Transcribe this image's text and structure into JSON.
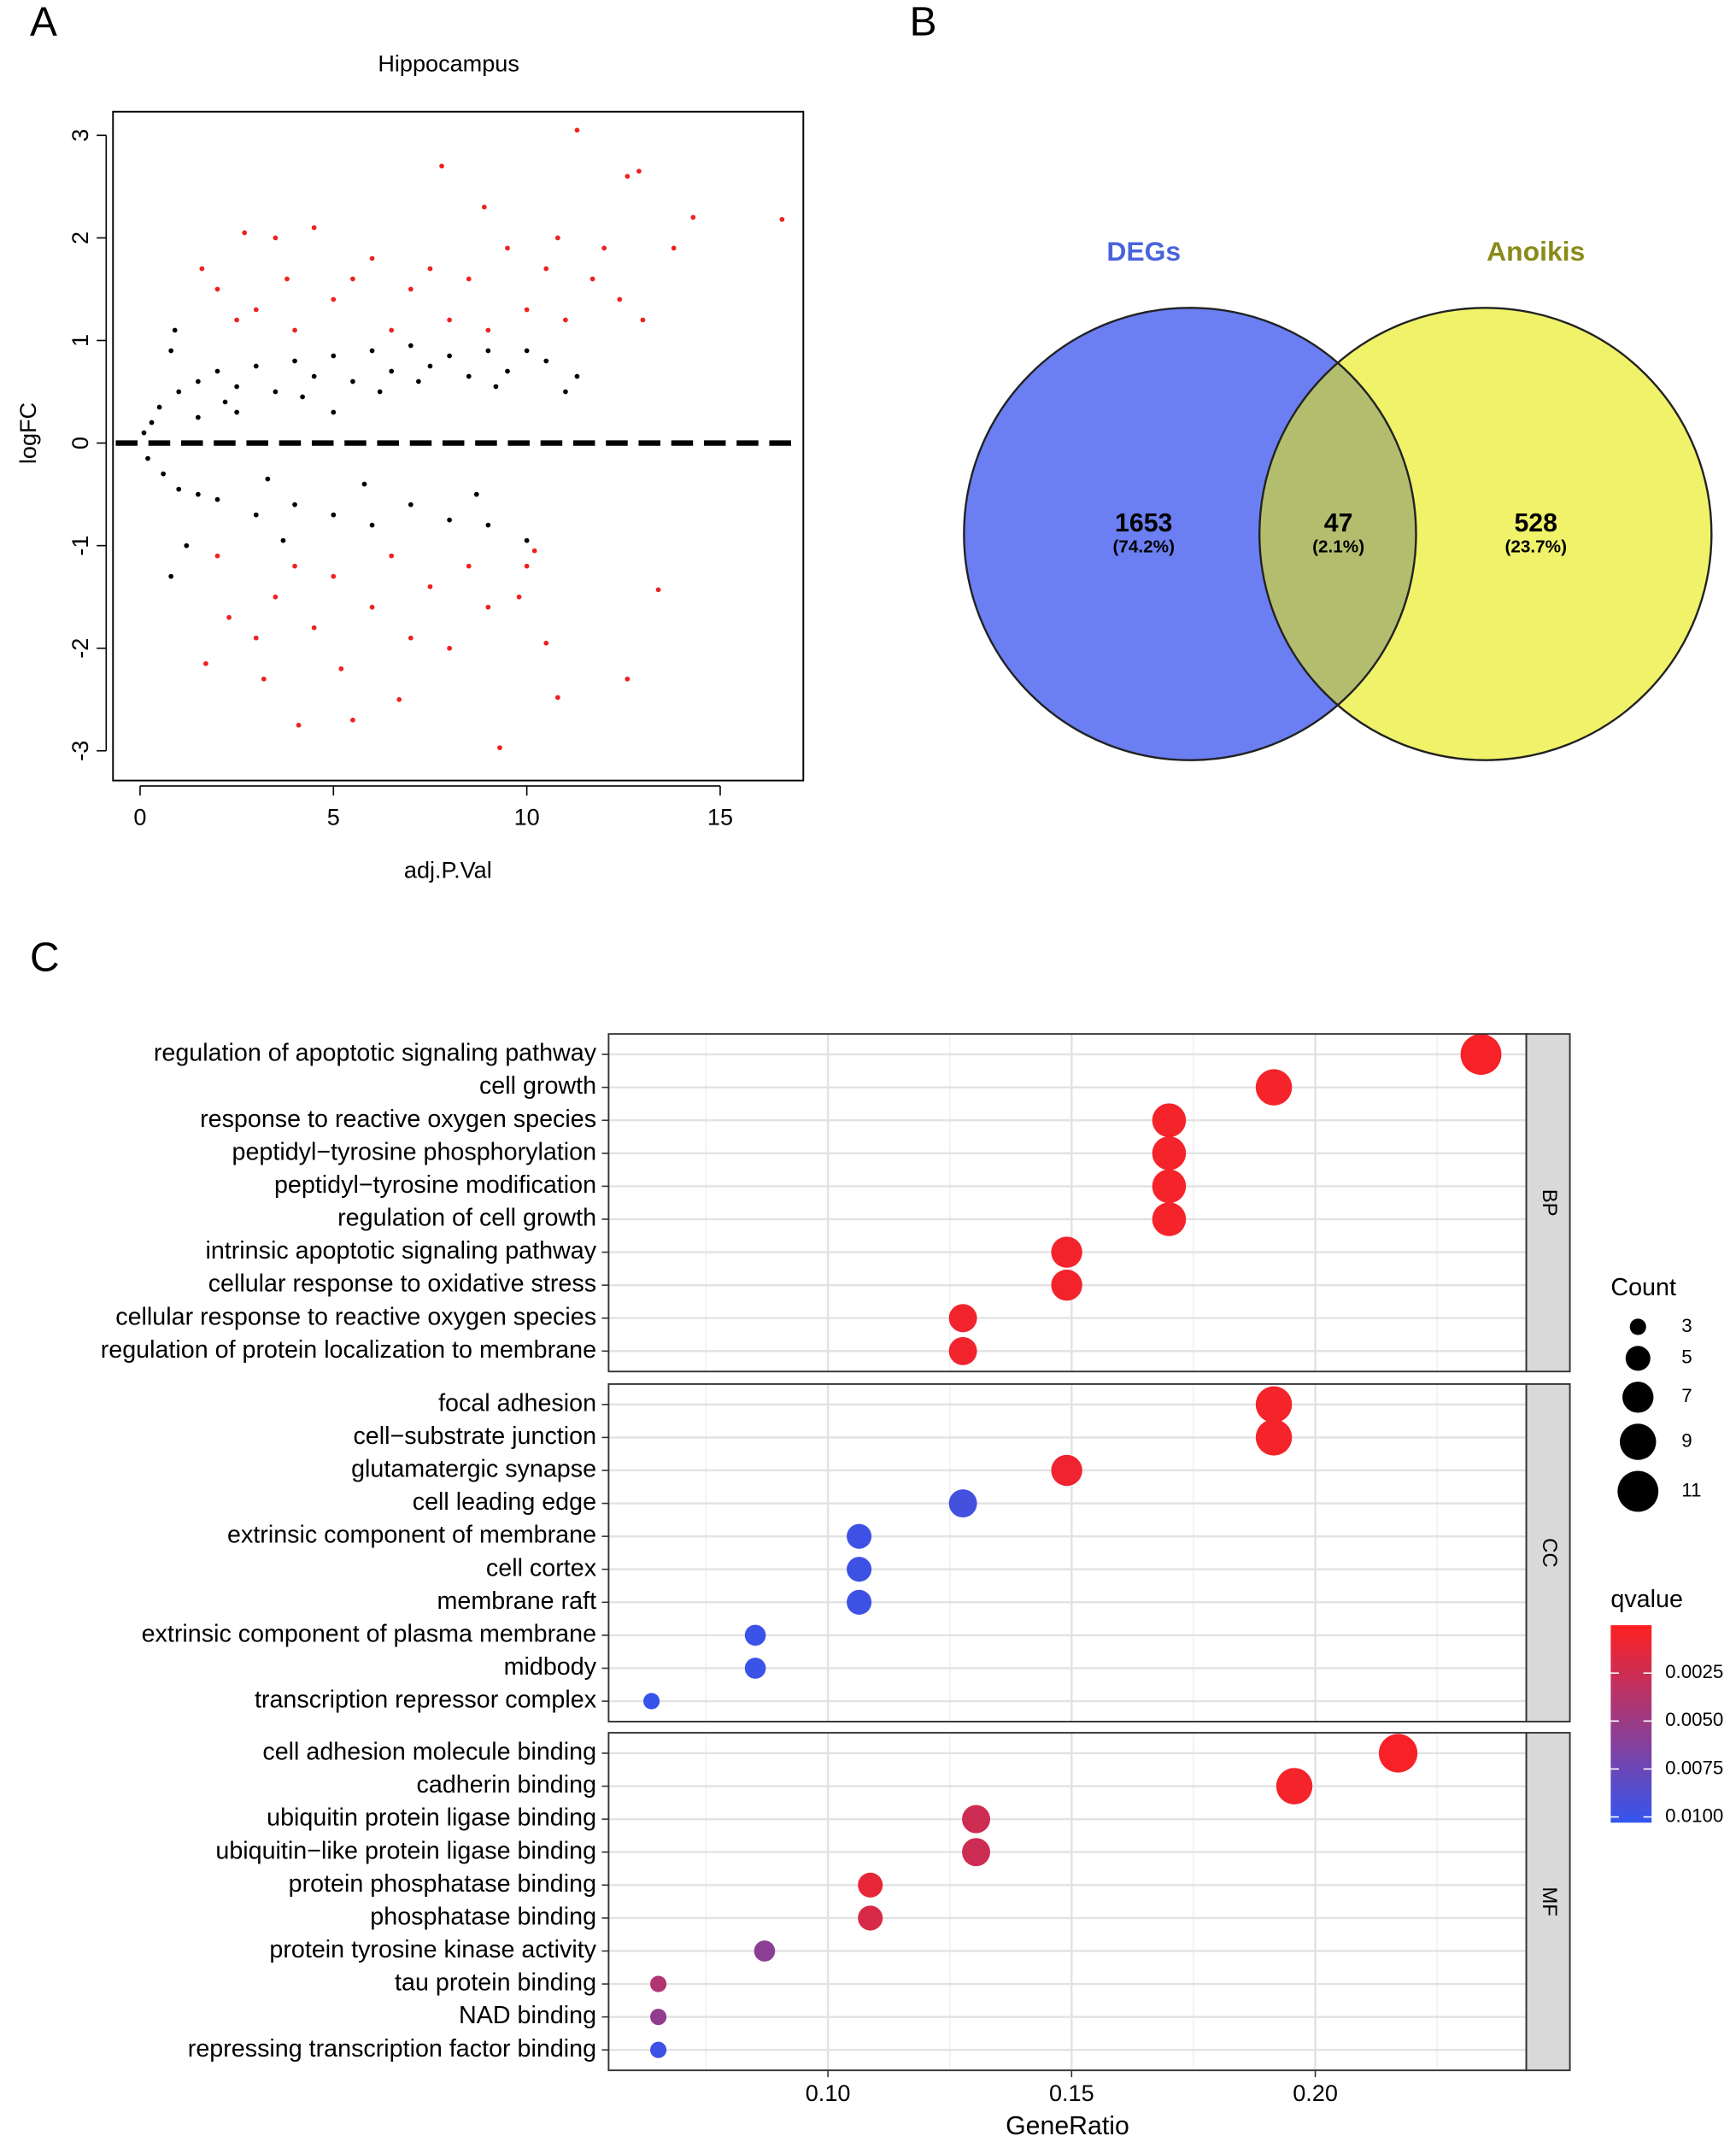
{
  "chart_data": [
    {
      "type": "scatter",
      "panel_label": "A",
      "title": "Hippocampus",
      "xlabel": "adj.P.Val",
      "ylabel": "logFC",
      "xlim": [
        -0.7,
        17.15
      ],
      "ylim": [
        -3.29,
        3.23
      ],
      "xticks": [
        0,
        5,
        10,
        15
      ],
      "yticks": [
        -3,
        -2,
        -1,
        0,
        1,
        2,
        3
      ],
      "hline": 0,
      "series": [
        {
          "color": "#000000",
          "x": [
            0.1,
            0.2,
            0.3,
            0.5,
            0.6,
            1,
            1,
            1.5,
            1.5,
            2,
            2,
            2.5,
            3,
            3,
            3.5,
            4,
            4,
            4.5,
            5,
            5,
            5.5,
            6,
            6,
            6.5,
            7,
            7,
            7.5,
            8,
            8,
            8.5,
            9,
            9,
            9.5,
            10,
            10,
            10.5,
            0.8,
            0.9,
            1.2,
            0.8,
            11.3,
            11,
            8.7,
            3.7,
            2.5,
            5,
            1.5,
            2.2,
            4.2,
            6.2,
            7.2,
            9.2,
            3.3,
            5.8
          ],
          "y": [
            0.1,
            -0.15,
            0.2,
            0.35,
            -0.3,
            0.5,
            -0.45,
            0.6,
            -0.5,
            0.7,
            -0.55,
            0.55,
            0.75,
            -0.7,
            0.5,
            0.8,
            -0.6,
            0.65,
            0.85,
            -0.7,
            0.6,
            0.9,
            -0.8,
            0.7,
            0.95,
            -0.6,
            0.75,
            0.85,
            -0.75,
            0.65,
            0.9,
            -0.8,
            0.7,
            0.9,
            -0.95,
            0.8,
            0.9,
            1.1,
            -1.0,
            -1.3,
            0.65,
            0.5,
            -0.5,
            -0.95,
            0.3,
            0.3,
            0.25,
            0.4,
            0.45,
            0.5,
            0.6,
            0.55,
            -0.35,
            -0.4
          ]
        },
        {
          "color": "#ee2222",
          "x": [
            11.3,
            7.8,
            12.9,
            14.3,
            16.6,
            13.8,
            8.9,
            3.5,
            2.7,
            4.5,
            6.0,
            9.5,
            10.5,
            11.7,
            12.4,
            2.0,
            1.6,
            3.0,
            5.0,
            7.0,
            8.0,
            9.0,
            10.0,
            11.0,
            13.0,
            4.0,
            6.5,
            12.0,
            5.5,
            3.8,
            2.5,
            7.5,
            8.5,
            10.8,
            12.6,
            9.3,
            4.1,
            5.5,
            6.7,
            10.8,
            12.6,
            13.4,
            1.7,
            2.3,
            3.0,
            3.5,
            4.5,
            5.0,
            6.0,
            7.0,
            8.0,
            9.0,
            10.5,
            10.0,
            2.0,
            4.0,
            6.5,
            3.2,
            5.2,
            7.5,
            8.5,
            9.8,
            10.2
          ],
          "y": [
            3.05,
            2.7,
            2.65,
            2.2,
            2.18,
            1.9,
            2.3,
            2.0,
            2.05,
            2.1,
            1.8,
            1.9,
            1.7,
            1.6,
            1.4,
            1.5,
            1.7,
            1.3,
            1.4,
            1.5,
            1.2,
            1.1,
            1.3,
            1.2,
            1.2,
            1.1,
            1.1,
            1.9,
            1.6,
            1.6,
            1.2,
            1.7,
            1.6,
            2.0,
            2.6,
            -2.97,
            -2.75,
            -2.7,
            -2.5,
            -2.48,
            -2.3,
            -1.43,
            -2.15,
            -1.7,
            -1.9,
            -1.5,
            -1.8,
            -1.3,
            -1.6,
            -1.9,
            -2.0,
            -1.6,
            -1.95,
            -1.2,
            -1.1,
            -1.2,
            -1.1,
            -2.3,
            -2.2,
            -1.4,
            -1.2,
            -1.5,
            -1.05
          ]
        }
      ]
    },
    {
      "type": "venn",
      "panel_label": "B",
      "sets": [
        {
          "name": "DEGs",
          "color": "#6b7ff2",
          "label_color": "#4a63dc"
        },
        {
          "name": "Anoikis",
          "color": "#f0f26a",
          "label_color": "#8a8a1a"
        }
      ],
      "overlap_color": "#b3bd6e",
      "counts": [
        1653,
        47,
        528
      ],
      "percents": [
        74.2,
        2.1,
        23.7
      ],
      "percent_labels": [
        "(74.2%)",
        "(2.1%)",
        "(23.7%)"
      ]
    },
    {
      "type": "dotplot",
      "panel_label": "C",
      "xlabel": "GeneRatio",
      "xlim": [
        0.055,
        0.2433
      ],
      "xticks": [
        {
          "value": 0.1,
          "label": "0.10"
        },
        {
          "value": 0.15,
          "label": "0.15"
        },
        {
          "value": 0.2,
          "label": "0.20"
        }
      ],
      "size_label": "Count",
      "size_lim": [
        3,
        11
      ],
      "size_ticks": [
        3,
        5,
        7,
        9,
        11
      ],
      "color_label": "qvalue",
      "color_lim": [
        0,
        0.0103
      ],
      "color_low": "#ff2020",
      "color_high": "#3355ee",
      "color_ticks": [
        {
          "value": 0.0025,
          "label": "0.0025"
        },
        {
          "value": 0.005,
          "label": "0.0050"
        },
        {
          "value": 0.0075,
          "label": "0.0075"
        },
        {
          "value": 0.01,
          "label": "0.0100"
        }
      ],
      "facets": [
        {
          "name": "BP",
          "categories": [
            "regulation of apoptotic signaling pathway",
            "cell growth",
            "response to reactive oxygen species",
            "peptidyl−tyrosine phosphorylation",
            "peptidyl−tyrosine modification",
            "regulation of cell growth",
            "intrinsic apoptotic signaling pathway",
            "cellular response to oxidative stress",
            "cellular response to reactive oxygen species",
            "regulation of protein localization to membrane"
          ],
          "x": [
            0.234,
            0.1915,
            0.17,
            0.17,
            0.17,
            0.17,
            0.149,
            0.149,
            0.1277,
            0.1277
          ],
          "count": [
            11,
            9,
            8,
            8,
            8,
            8,
            7,
            7,
            6,
            6
          ],
          "q": [
            0.0004,
            0.0005,
            0.0005,
            0.0005,
            0.0005,
            0.0005,
            0.0006,
            0.0006,
            0.0007,
            0.0007
          ]
        },
        {
          "name": "CC",
          "categories": [
            "focal adhesion",
            "cell−substrate junction",
            "glutamatergic synapse",
            "cell leading edge",
            "extrinsic component of membrane",
            "cell cortex",
            "membrane raft",
            "extrinsic component of plasma membrane",
            "midbody",
            "transcription repressor complex"
          ],
          "x": [
            0.1915,
            0.1915,
            0.149,
            0.1277,
            0.1064,
            0.1064,
            0.1064,
            0.0851,
            0.0851,
            0.0638
          ],
          "count": [
            9,
            9,
            7,
            6,
            5,
            5,
            5,
            4,
            4,
            3
          ],
          "q": [
            0.0005,
            0.0005,
            0.0008,
            0.0095,
            0.0098,
            0.0098,
            0.0098,
            0.0099,
            0.0099,
            0.0101
          ]
        },
        {
          "name": "MF",
          "categories": [
            "cell adhesion molecule binding",
            "cadherin binding",
            "ubiquitin protein ligase binding",
            "ubiquitin−like protein ligase binding",
            "protein phosphatase binding",
            "phosphatase binding",
            "protein tyrosine kinase activity",
            "tau protein binding",
            "NAD binding",
            "repressing transcription factor binding"
          ],
          "x": [
            0.217,
            0.1957,
            0.1304,
            0.1304,
            0.1087,
            0.1087,
            0.087,
            0.0652,
            0.0652,
            0.0652
          ],
          "count": [
            10,
            9,
            6,
            6,
            5,
            5,
            4,
            3,
            3,
            3
          ],
          "q": [
            0.0004,
            0.0005,
            0.0025,
            0.0025,
            0.0012,
            0.002,
            0.0058,
            0.004,
            0.0055,
            0.0098
          ]
        }
      ]
    }
  ]
}
